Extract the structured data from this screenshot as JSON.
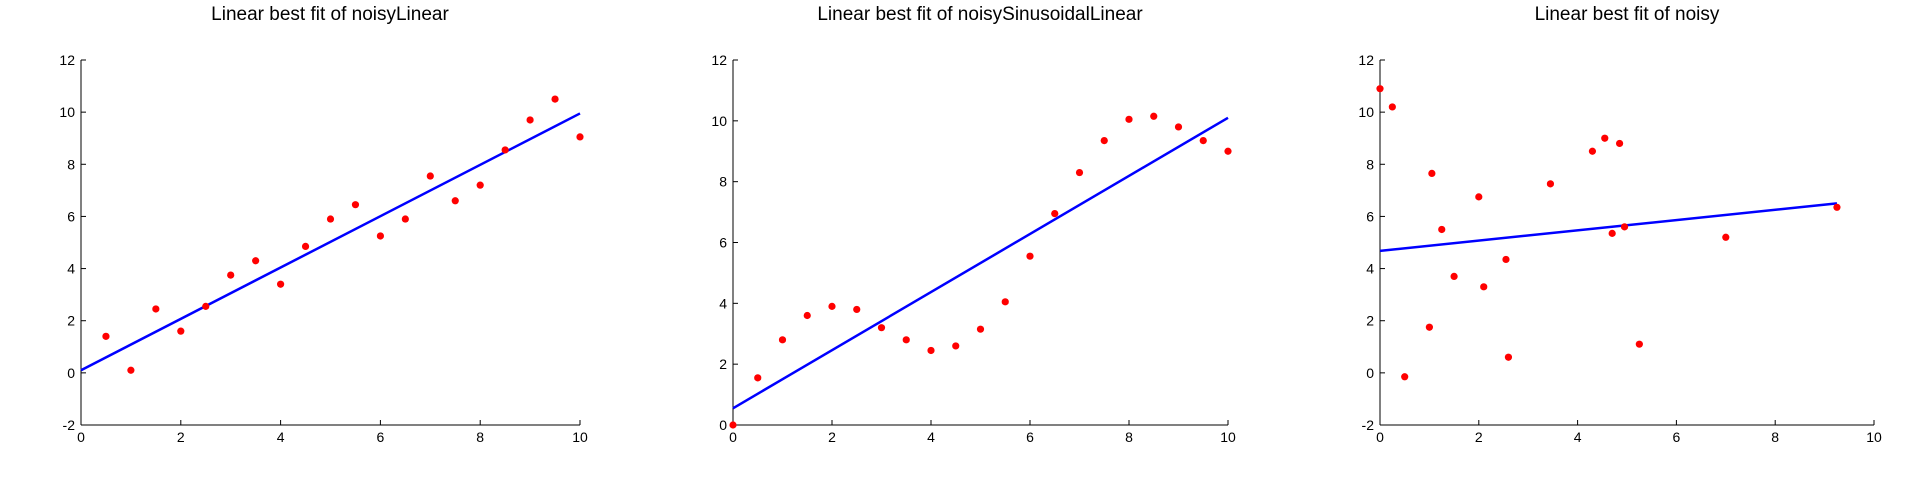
{
  "style": {
    "point_color": "#ff0000",
    "line_color": "#0000ff",
    "axis_color": "#000000",
    "background": "#ffffff"
  },
  "chart_data": [
    {
      "type": "scatter",
      "title": "Linear best fit of noisyLinear",
      "xlabel": "",
      "ylabel": "",
      "xlim": [
        0,
        10
      ],
      "ylim": [
        -2,
        12
      ],
      "xticks": [
        0,
        2,
        4,
        6,
        8,
        10
      ],
      "yticks": [
        -2,
        0,
        2,
        4,
        6,
        8,
        10,
        12
      ],
      "grid": false,
      "points": {
        "x": [
          0.5,
          1.0,
          1.5,
          2.0,
          2.5,
          3.0,
          3.5,
          4.0,
          4.5,
          5.0,
          5.5,
          6.0,
          6.5,
          7.0,
          7.5,
          8.0,
          8.5,
          9.0,
          9.5,
          10.0
        ],
        "y": [
          1.4,
          0.1,
          2.45,
          1.6,
          2.55,
          3.75,
          4.3,
          3.4,
          4.85,
          5.9,
          6.45,
          5.25,
          5.9,
          7.55,
          6.6,
          7.2,
          8.55,
          9.7,
          10.5,
          9.05
        ]
      },
      "fit_line": {
        "x": [
          0,
          10
        ],
        "y": [
          0.1,
          9.95
        ]
      }
    },
    {
      "type": "scatter",
      "title": "Linear best fit of noisySinusoidalLinear",
      "xlabel": "",
      "ylabel": "",
      "xlim": [
        0,
        10
      ],
      "ylim": [
        0,
        12
      ],
      "xticks": [
        0,
        2,
        4,
        6,
        8,
        10
      ],
      "yticks": [
        0,
        2,
        4,
        6,
        8,
        10,
        12
      ],
      "grid": false,
      "points": {
        "x": [
          0.0,
          0.5,
          1.0,
          1.5,
          2.0,
          2.5,
          3.0,
          3.5,
          4.0,
          4.5,
          5.0,
          5.5,
          6.0,
          6.5,
          7.0,
          7.5,
          8.0,
          8.5,
          9.0,
          9.5,
          10.0
        ],
        "y": [
          0.0,
          1.55,
          2.8,
          3.6,
          3.9,
          3.8,
          3.2,
          2.8,
          2.45,
          2.6,
          3.15,
          4.05,
          5.55,
          6.95,
          8.3,
          9.35,
          10.05,
          10.15,
          9.8,
          9.35,
          9.0
        ]
      },
      "fit_line": {
        "x": [
          0,
          10
        ],
        "y": [
          0.55,
          10.1
        ]
      }
    },
    {
      "type": "scatter",
      "title": "Linear best fit of noisy",
      "xlabel": "",
      "ylabel": "",
      "xlim": [
        0,
        10
      ],
      "ylim": [
        -2,
        12
      ],
      "xticks": [
        0,
        2,
        4,
        6,
        8,
        10
      ],
      "yticks": [
        -2,
        0,
        2,
        4,
        6,
        8,
        10,
        12
      ],
      "grid": false,
      "points": {
        "x": [
          0.0,
          0.25,
          0.5,
          1.0,
          1.05,
          1.25,
          1.5,
          2.0,
          2.1,
          2.55,
          2.6,
          3.45,
          4.3,
          4.55,
          4.7,
          4.85,
          4.95,
          5.25,
          7.0,
          9.25
        ],
        "y": [
          10.9,
          10.2,
          -0.15,
          1.75,
          7.65,
          5.5,
          3.7,
          6.75,
          3.3,
          4.35,
          0.6,
          7.25,
          8.5,
          9.0,
          5.35,
          8.8,
          5.6,
          1.1,
          5.2,
          6.35
        ]
      },
      "fit_line": {
        "x": [
          0,
          9.25
        ],
        "y": [
          4.68,
          6.5
        ]
      }
    }
  ]
}
